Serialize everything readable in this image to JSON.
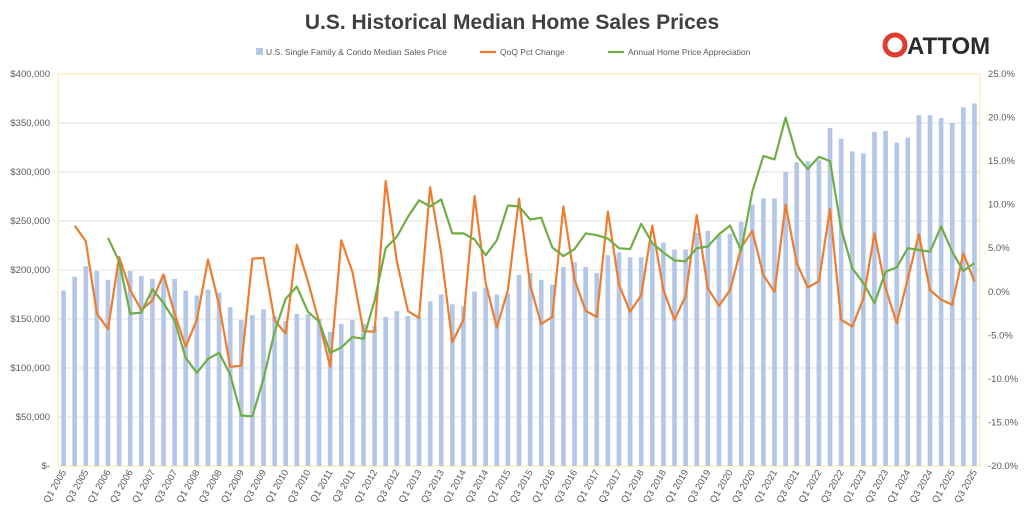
{
  "chart_data": {
    "type": "bar+line",
    "title": "U.S. Historical Median Home Sales Prices",
    "logo_text": "ATTOM",
    "legend_position": "top",
    "grid": true,
    "categories_start": "Q1 2005",
    "x_tick_labels": [
      "Q1 2005",
      "Q3 2005",
      "Q1 2006",
      "Q3 2006",
      "Q1 2007",
      "Q3 2007",
      "Q1 2008",
      "Q3 2008",
      "Q1 2009",
      "Q3 2009",
      "Q1 2010",
      "Q3 2010",
      "Q1 2011",
      "Q3 2011",
      "Q1 2012",
      "Q3 2012",
      "Q1 2013",
      "Q3 2013",
      "Q1 2014",
      "Q3 2014",
      "Q1 2015",
      "Q3 2015",
      "Q1 2016",
      "Q3 2016",
      "Q1 2017",
      "Q3 2017",
      "Q1 2018",
      "Q3 2018",
      "Q1 2019",
      "Q3 2019",
      "Q1 2020",
      "Q3 2020",
      "Q1 2021",
      "Q3 2021",
      "Q1 2022",
      "Q3 2022",
      "Q1 2023",
      "Q3 2023",
      "Q1 2024",
      "Q3 2024",
      "Q1 2025",
      "Q3 2025"
    ],
    "y_left": {
      "ylim": [
        0,
        400000
      ],
      "ticks": [
        "$-",
        "$50,000",
        "$100,000",
        "$150,000",
        "$200,000",
        "$250,000",
        "$300,000",
        "$350,000",
        "$400,000"
      ]
    },
    "y_right": {
      "ylim": [
        -20,
        25
      ],
      "ticks": [
        "-20.0%",
        "-15.0%",
        "-10.0%",
        "-5.0%",
        "0.0%",
        "5.0%",
        "10.0%",
        "15.0%",
        "20.0%",
        "25.0%"
      ]
    },
    "series": [
      {
        "name": "U.S. Single Family & Condo Median Sales Price",
        "type": "bar",
        "axis": "left",
        "color": "#b4c7e7",
        "values": [
          179000,
          193000,
          204000,
          199000,
          190000,
          205000,
          199000,
          194000,
          191000,
          195000,
          191000,
          179000,
          174000,
          180000,
          177000,
          162000,
          149000,
          154000,
          160000,
          153000,
          148000,
          155000,
          155000,
          150000,
          137000,
          145000,
          149000,
          145000,
          143000,
          152000,
          158000,
          153000,
          152000,
          168000,
          175000,
          165000,
          163000,
          178000,
          182000,
          175000,
          176000,
          195000,
          197000,
          190000,
          185000,
          203000,
          208000,
          203000,
          197000,
          215000,
          218000,
          213000,
          213000,
          228000,
          228000,
          221000,
          221000,
          238000,
          240000,
          236000,
          237000,
          249000,
          267000,
          273000,
          273000,
          300000,
          310000,
          311000,
          312000,
          345000,
          334000,
          321000,
          319000,
          341000,
          342000,
          330000,
          335000,
          358000,
          358000,
          355000,
          350000,
          366000,
          370000
        ]
      },
      {
        "name": "QoQ Pct Change",
        "type": "line",
        "axis": "right",
        "color": "#ed7d31",
        "values": [
          null,
          7.6,
          5.8,
          -2.5,
          -4.3,
          4.0,
          0.2,
          -2.1,
          -1.0,
          2.0,
          -2.5,
          -6.3,
          -3.2,
          3.7,
          -1.5,
          -8.6,
          -8.5,
          3.8,
          3.9,
          -3.3,
          -4.8,
          5.4,
          1.2,
          -3.4,
          -8.6,
          5.9,
          2.3,
          -4.5,
          -4.6,
          12.7,
          3.5,
          -2.2,
          -3.0,
          12.0,
          4.4,
          -5.8,
          -3.2,
          11.0,
          1.0,
          -4.1,
          0.2,
          10.7,
          0.8,
          -3.7,
          -2.9,
          9.8,
          1.4,
          -2.2,
          -2.9,
          9.2,
          0.8,
          -2.3,
          -0.4,
          7.6,
          0.2,
          -3.2,
          -0.5,
          8.8,
          0.4,
          -1.6,
          0.2,
          5.1,
          7.0,
          1.9,
          0.0,
          10.0,
          3.3,
          0.5,
          1.2,
          9.5,
          -3.2,
          -4.0,
          -0.8,
          6.7,
          0.4,
          -3.6,
          1.5,
          6.6,
          0.2,
          -0.9,
          -1.5,
          4.4,
          1.2
        ]
      },
      {
        "name": "Annual Home Price Appreciation",
        "type": "line",
        "axis": "right",
        "color": "#70ad47",
        "values": [
          null,
          null,
          null,
          null,
          6.2,
          3.5,
          -2.5,
          -2.4,
          0.3,
          -1.3,
          -3.3,
          -7.6,
          -9.3,
          -7.7,
          -7.0,
          -9.5,
          -14.2,
          -14.3,
          -10.0,
          -4.6,
          -0.8,
          0.6,
          -2.3,
          -3.4,
          -7.0,
          -6.4,
          -5.2,
          -5.4,
          -1.0,
          5.0,
          6.3,
          8.6,
          10.5,
          9.8,
          10.6,
          6.7,
          6.7,
          6.0,
          4.2,
          5.9,
          9.9,
          9.8,
          8.3,
          8.5,
          5.1,
          4.1,
          4.9,
          6.7,
          6.5,
          6.1,
          5.0,
          4.9,
          7.8,
          5.6,
          4.5,
          3.6,
          3.5,
          5.0,
          5.2,
          6.6,
          7.6,
          4.7,
          11.5,
          15.6,
          15.2,
          20.0,
          15.6,
          14.1,
          15.5,
          15.0,
          7.3,
          2.7,
          1.0,
          -1.3,
          2.3,
          2.8,
          5.0,
          4.8,
          4.6,
          7.5,
          4.6,
          2.4,
          3.3
        ]
      }
    ]
  }
}
